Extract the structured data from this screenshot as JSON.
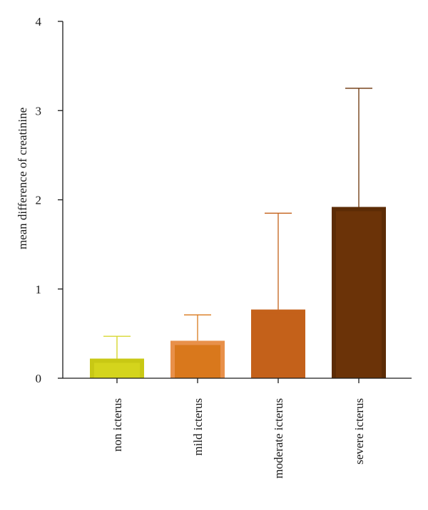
{
  "chart_data": {
    "type": "bar",
    "title": "",
    "xlabel": "",
    "ylabel": "mean difference of creatinine",
    "ylim": [
      0,
      4
    ],
    "yticks": [
      0,
      1,
      2,
      3,
      4
    ],
    "grid": false,
    "categories": [
      "non icterus",
      "mild icterus",
      "moderate icterus",
      "severe icterus"
    ],
    "values": [
      0.22,
      0.42,
      0.77,
      1.92
    ],
    "error_upper": [
      0.47,
      0.71,
      1.85,
      3.25
    ],
    "colors": [
      {
        "fill": "#D4D41C",
        "edge": "#C8C814"
      },
      {
        "fill": "#D9781C",
        "edge": "#E8904A"
      },
      {
        "fill": "#C4611A",
        "edge": "#C4611A"
      },
      {
        "fill": "#6B3308",
        "edge": "#5C2C06"
      }
    ],
    "axis_color": "#1a1a1a"
  }
}
